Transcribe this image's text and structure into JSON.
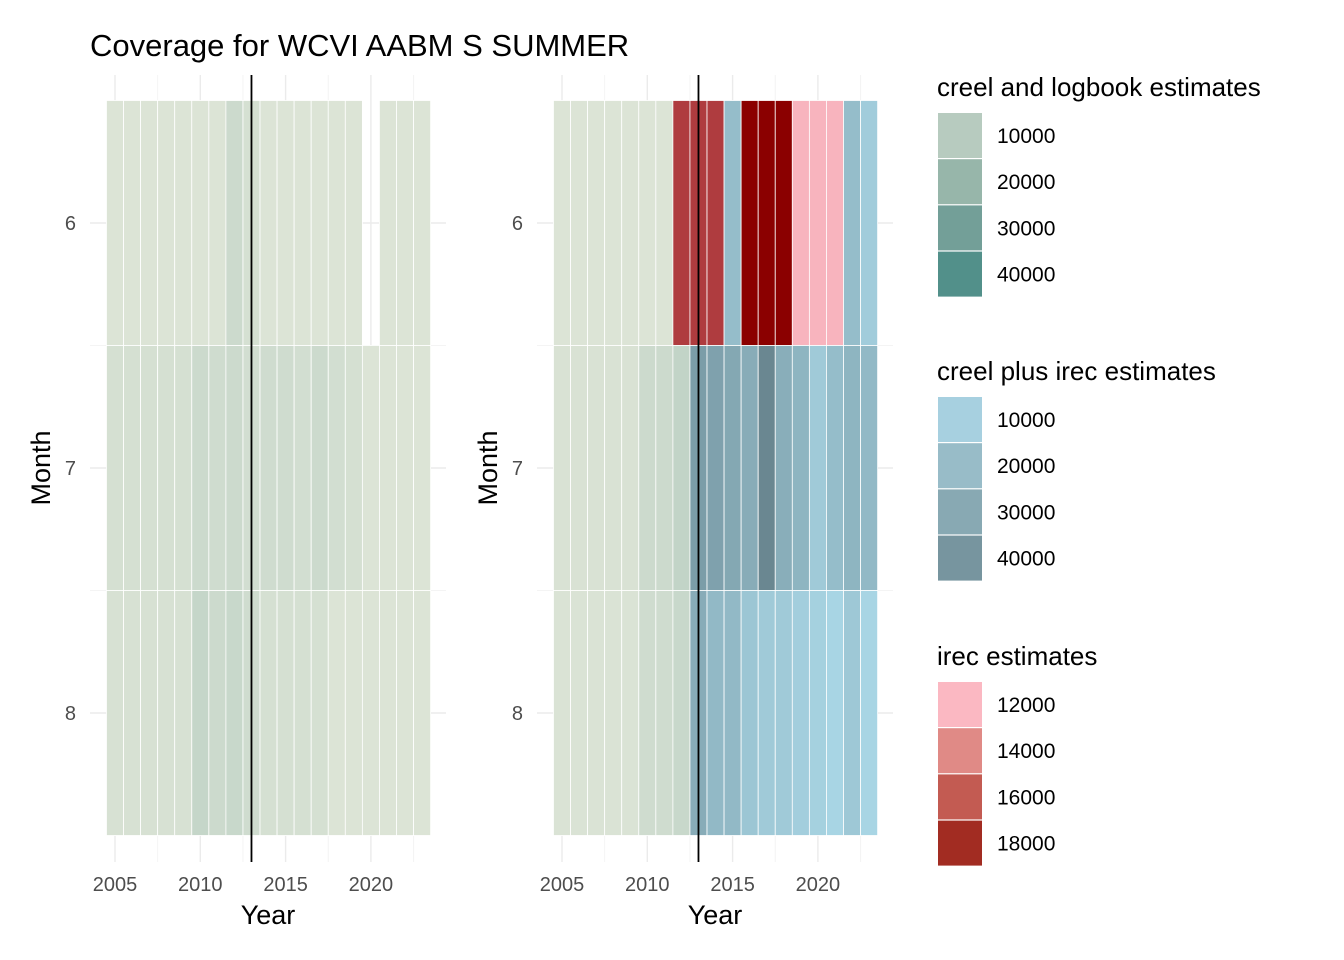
{
  "chart_data": {
    "type": "heatmap",
    "title": "Coverage for WCVI AABM S SUMMER",
    "reference_line_year": 2013,
    "xlim": [
      2004,
      2024
    ],
    "x_ticks": [
      2005,
      2010,
      2015,
      2020
    ],
    "y_ticks": [
      6,
      7,
      8
    ],
    "panels": [
      {
        "xlabel": "Year",
        "ylabel": "Month",
        "months": [
          {
            "month": 6,
            "cells": [
              {
                "year": 2005,
                "source": "creel and logbook estimates",
                "value": 1000
              },
              {
                "year": 2006,
                "source": "creel and logbook estimates",
                "value": 1000
              },
              {
                "year": 2007,
                "source": "creel and logbook estimates",
                "value": 1000
              },
              {
                "year": 2008,
                "source": "creel and logbook estimates",
                "value": 1000
              },
              {
                "year": 2009,
                "source": "creel and logbook estimates",
                "value": 1000
              },
              {
                "year": 2010,
                "source": "creel and logbook estimates",
                "value": 1000
              },
              {
                "year": 2011,
                "source": "creel and logbook estimates",
                "value": 1000
              },
              {
                "year": 2012,
                "source": "creel and logbook estimates",
                "value": 6000
              },
              {
                "year": 2013,
                "source": "creel and logbook estimates",
                "value": 3000
              },
              {
                "year": 2014,
                "source": "creel and logbook estimates",
                "value": 1000
              },
              {
                "year": 2015,
                "source": "creel and logbook estimates",
                "value": 1000
              },
              {
                "year": 2016,
                "source": "creel and logbook estimates",
                "value": 1000
              },
              {
                "year": 2017,
                "source": "creel and logbook estimates",
                "value": 1000
              },
              {
                "year": 2018,
                "source": "creel and logbook estimates",
                "value": 1000
              },
              {
                "year": 2019,
                "source": "creel and logbook estimates",
                "value": 1000
              },
              {
                "year": 2021,
                "source": "creel and logbook estimates",
                "value": 1000
              },
              {
                "year": 2022,
                "source": "creel and logbook estimates",
                "value": 1000
              },
              {
                "year": 2023,
                "source": "creel and logbook estimates",
                "value": 1000
              }
            ]
          },
          {
            "month": 7,
            "cells": [
              {
                "year": 2005,
                "source": "creel and logbook estimates",
                "value": 3000
              },
              {
                "year": 2006,
                "source": "creel and logbook estimates",
                "value": 3000
              },
              {
                "year": 2007,
                "source": "creel and logbook estimates",
                "value": 3000
              },
              {
                "year": 2008,
                "source": "creel and logbook estimates",
                "value": 3000
              },
              {
                "year": 2009,
                "source": "creel and logbook estimates",
                "value": 3000
              },
              {
                "year": 2010,
                "source": "creel and logbook estimates",
                "value": 6000
              },
              {
                "year": 2011,
                "source": "creel and logbook estimates",
                "value": 5000
              },
              {
                "year": 2012,
                "source": "creel and logbook estimates",
                "value": 6000
              },
              {
                "year": 2013,
                "source": "creel and logbook estimates",
                "value": 4000
              },
              {
                "year": 2014,
                "source": "creel and logbook estimates",
                "value": 5000
              },
              {
                "year": 2015,
                "source": "creel and logbook estimates",
                "value": 5000
              },
              {
                "year": 2016,
                "source": "creel and logbook estimates",
                "value": 4000
              },
              {
                "year": 2017,
                "source": "creel and logbook estimates",
                "value": 6000
              },
              {
                "year": 2018,
                "source": "creel and logbook estimates",
                "value": 4000
              },
              {
                "year": 2019,
                "source": "creel and logbook estimates",
                "value": 3000
              },
              {
                "year": 2020,
                "source": "creel and logbook estimates",
                "value": 1000
              },
              {
                "year": 2021,
                "source": "creel and logbook estimates",
                "value": 1000
              },
              {
                "year": 2022,
                "source": "creel and logbook estimates",
                "value": 1000
              },
              {
                "year": 2023,
                "source": "creel and logbook estimates",
                "value": 1000
              }
            ]
          },
          {
            "month": 8,
            "cells": [
              {
                "year": 2005,
                "source": "creel and logbook estimates",
                "value": 2500
              },
              {
                "year": 2006,
                "source": "creel and logbook estimates",
                "value": 2500
              },
              {
                "year": 2007,
                "source": "creel and logbook estimates",
                "value": 2500
              },
              {
                "year": 2008,
                "source": "creel and logbook estimates",
                "value": 2500
              },
              {
                "year": 2009,
                "source": "creel and logbook estimates",
                "value": 2500
              },
              {
                "year": 2010,
                "source": "creel and logbook estimates",
                "value": 8000
              },
              {
                "year": 2011,
                "source": "creel and logbook estimates",
                "value": 6000
              },
              {
                "year": 2012,
                "source": "creel and logbook estimates",
                "value": 7000
              },
              {
                "year": 2013,
                "source": "creel and logbook estimates",
                "value": 5000
              },
              {
                "year": 2014,
                "source": "creel and logbook estimates",
                "value": 3000
              },
              {
                "year": 2015,
                "source": "creel and logbook estimates",
                "value": 3000
              },
              {
                "year": 2016,
                "source": "creel and logbook estimates",
                "value": 3000
              },
              {
                "year": 2017,
                "source": "creel and logbook estimates",
                "value": 3000
              },
              {
                "year": 2018,
                "source": "creel and logbook estimates",
                "value": 1000
              },
              {
                "year": 2019,
                "source": "creel and logbook estimates",
                "value": 1000
              },
              {
                "year": 2020,
                "source": "creel and logbook estimates",
                "value": 1000
              },
              {
                "year": 2021,
                "source": "creel and logbook estimates",
                "value": 1000
              },
              {
                "year": 2022,
                "source": "creel and logbook estimates",
                "value": 1000
              },
              {
                "year": 2023,
                "source": "creel and logbook estimates",
                "value": 1000
              }
            ]
          }
        ]
      },
      {
        "xlabel": "Year",
        "ylabel": "Month",
        "months": [
          {
            "month": 6,
            "cells": [
              {
                "year": 2005,
                "source": "creel and logbook estimates",
                "value": 1000
              },
              {
                "year": 2006,
                "source": "creel and logbook estimates",
                "value": 1000
              },
              {
                "year": 2007,
                "source": "creel and logbook estimates",
                "value": 1000
              },
              {
                "year": 2008,
                "source": "creel and logbook estimates",
                "value": 1000
              },
              {
                "year": 2009,
                "source": "creel and logbook estimates",
                "value": 1000
              },
              {
                "year": 2010,
                "source": "creel and logbook estimates",
                "value": 1000
              },
              {
                "year": 2011,
                "source": "creel and logbook estimates",
                "value": 1000
              },
              {
                "year": 2012,
                "source": "irec estimates",
                "value": 16500
              },
              {
                "year": 2013,
                "source": "irec estimates",
                "value": 16500
              },
              {
                "year": 2014,
                "source": "irec estimates",
                "value": 16500
              },
              {
                "year": 2015,
                "source": "creel plus irec estimates",
                "value": 20000
              },
              {
                "year": 2016,
                "source": "irec estimates",
                "value": 19000
              },
              {
                "year": 2017,
                "source": "irec estimates",
                "value": 19000
              },
              {
                "year": 2018,
                "source": "irec estimates",
                "value": 19000
              },
              {
                "year": 2019,
                "source": "irec estimates",
                "value": 11500
              },
              {
                "year": 2020,
                "source": "irec estimates",
                "value": 11500
              },
              {
                "year": 2021,
                "source": "irec estimates",
                "value": 11500
              },
              {
                "year": 2022,
                "source": "creel plus irec estimates",
                "value": 20000
              },
              {
                "year": 2023,
                "source": "creel plus irec estimates",
                "value": 13000
              }
            ]
          },
          {
            "month": 7,
            "cells": [
              {
                "year": 2005,
                "source": "creel and logbook estimates",
                "value": 2000
              },
              {
                "year": 2006,
                "source": "creel and logbook estimates",
                "value": 2000
              },
              {
                "year": 2007,
                "source": "creel and logbook estimates",
                "value": 2000
              },
              {
                "year": 2008,
                "source": "creel and logbook estimates",
                "value": 2000
              },
              {
                "year": 2009,
                "source": "creel and logbook estimates",
                "value": 2000
              },
              {
                "year": 2010,
                "source": "creel and logbook estimates",
                "value": 6000
              },
              {
                "year": 2011,
                "source": "creel and logbook estimates",
                "value": 6000
              },
              {
                "year": 2012,
                "source": "creel and logbook estimates",
                "value": 9000
              },
              {
                "year": 2013,
                "source": "creel plus irec estimates",
                "value": 35000
              },
              {
                "year": 2014,
                "source": "creel plus irec estimates",
                "value": 33000
              },
              {
                "year": 2015,
                "source": "creel plus irec estimates",
                "value": 30000
              },
              {
                "year": 2016,
                "source": "creel plus irec estimates",
                "value": 28000
              },
              {
                "year": 2017,
                "source": "creel plus irec estimates",
                "value": 45000
              },
              {
                "year": 2018,
                "source": "creel plus irec estimates",
                "value": 27000
              },
              {
                "year": 2019,
                "source": "creel plus irec estimates",
                "value": 24000
              },
              {
                "year": 2020,
                "source": "creel plus irec estimates",
                "value": 14000
              },
              {
                "year": 2021,
                "source": "creel plus irec estimates",
                "value": 20000
              },
              {
                "year": 2022,
                "source": "creel plus irec estimates",
                "value": 24000
              },
              {
                "year": 2023,
                "source": "creel plus irec estimates",
                "value": 22000
              }
            ]
          },
          {
            "month": 8,
            "cells": [
              {
                "year": 2005,
                "source": "creel and logbook estimates",
                "value": 1500
              },
              {
                "year": 2006,
                "source": "creel and logbook estimates",
                "value": 1500
              },
              {
                "year": 2007,
                "source": "creel and logbook estimates",
                "value": 1500
              },
              {
                "year": 2008,
                "source": "creel and logbook estimates",
                "value": 1500
              },
              {
                "year": 2009,
                "source": "creel and logbook estimates",
                "value": 1500
              },
              {
                "year": 2010,
                "source": "creel and logbook estimates",
                "value": 5000
              },
              {
                "year": 2011,
                "source": "creel and logbook estimates",
                "value": 5000
              },
              {
                "year": 2012,
                "source": "creel and logbook estimates",
                "value": 7000
              },
              {
                "year": 2013,
                "source": "creel plus irec estimates",
                "value": 28000
              },
              {
                "year": 2014,
                "source": "creel plus irec estimates",
                "value": 22000
              },
              {
                "year": 2015,
                "source": "creel plus irec estimates",
                "value": 22000
              },
              {
                "year": 2016,
                "source": "creel plus irec estimates",
                "value": 16000
              },
              {
                "year": 2017,
                "source": "creel plus irec estimates",
                "value": 14000
              },
              {
                "year": 2018,
                "source": "creel plus irec estimates",
                "value": 14000
              },
              {
                "year": 2019,
                "source": "creel plus irec estimates",
                "value": 12000
              },
              {
                "year": 2020,
                "source": "creel plus irec estimates",
                "value": 11000
              },
              {
                "year": 2021,
                "source": "creel plus irec estimates",
                "value": 9000
              },
              {
                "year": 2022,
                "source": "creel plus irec estimates",
                "value": 15000
              },
              {
                "year": 2023,
                "source": "creel plus irec estimates",
                "value": 9000
              }
            ]
          }
        ]
      }
    ],
    "legends": [
      {
        "title": "creel and logbook estimates",
        "color_low": "#dfe6d8",
        "color_high": "#4e8a84",
        "range": [
          0,
          45000
        ],
        "breaks": [
          10000,
          20000,
          30000,
          40000
        ],
        "swatches": [
          "#b7cbbf",
          "#97b6aa",
          "#739f98",
          "#52908a"
        ]
      },
      {
        "title": "creel plus irec estimates",
        "color_low": "#aad7e6",
        "color_high": "#65818a",
        "range": [
          8000,
          48000
        ],
        "breaks": [
          10000,
          20000,
          30000,
          40000
        ],
        "swatches": [
          "#a7d0e0",
          "#98bcc8",
          "#88a9b3",
          "#77959f"
        ]
      },
      {
        "title": "irec estimates",
        "color_low": "#ffc0cb",
        "color_high": "#8b0000",
        "range": [
          11000,
          19000
        ],
        "breaks": [
          12000,
          14000,
          16000,
          18000
        ],
        "swatches": [
          "#fbb8c2",
          "#e08a86",
          "#c35b52",
          "#a22c22"
        ]
      }
    ],
    "grid": true,
    "legend_position": "right"
  }
}
